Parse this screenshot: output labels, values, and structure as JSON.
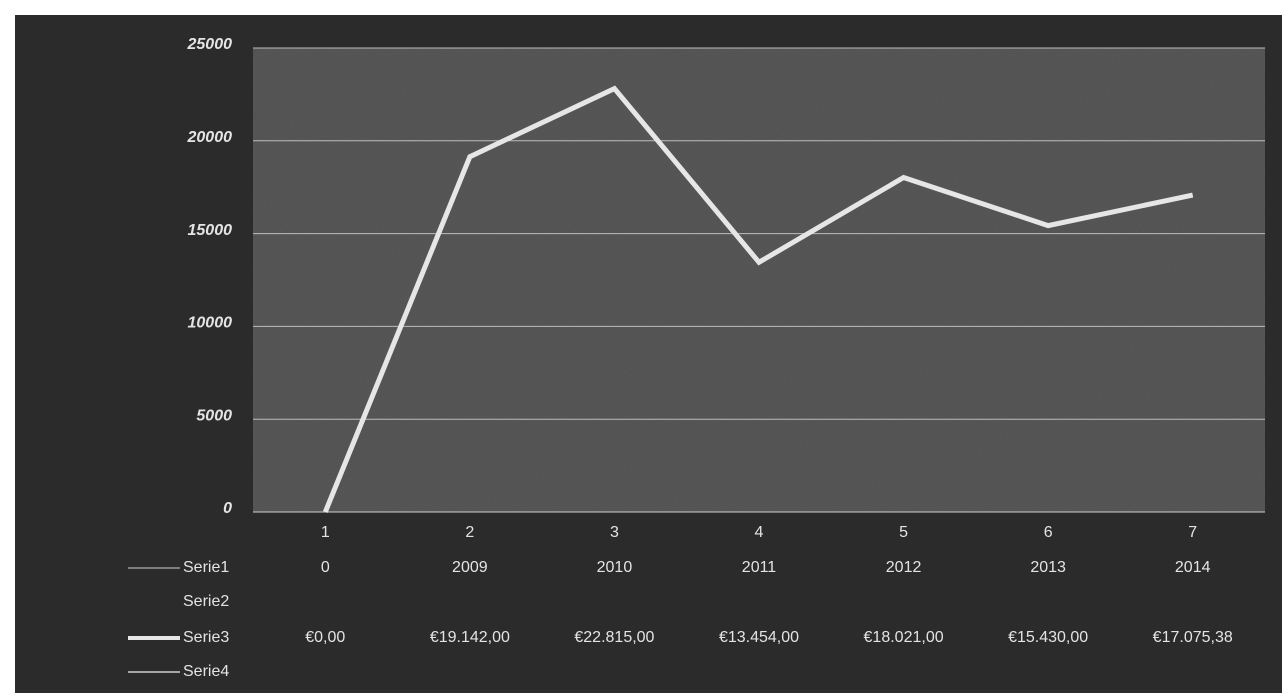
{
  "chart_data": {
    "type": "line",
    "categories": [
      "1",
      "2",
      "3",
      "4",
      "5",
      "6",
      "7"
    ],
    "series": [
      {
        "name": "Serie1",
        "color": "#9a9a9a",
        "values": [
          0,
          2009,
          2010,
          2011,
          2012,
          2013,
          2014
        ]
      },
      {
        "name": "Serie2",
        "values": [
          null,
          null,
          null,
          null,
          null,
          null,
          null
        ]
      },
      {
        "name": "Serie3",
        "color": "#e6e6e6",
        "plotted": true,
        "values": [
          0,
          19142,
          22815,
          13454,
          18021,
          15430,
          17075.38
        ],
        "value_labels": [
          "€0,00",
          "€19.142,00",
          "€22.815,00",
          "€13.454,00",
          "€18.021,00",
          "€15.430,00",
          "€17.075,38"
        ]
      },
      {
        "name": "Serie4",
        "color": "#cfcfcf",
        "values": [
          null,
          null,
          null,
          null,
          null,
          null,
          null
        ]
      }
    ],
    "ylim": [
      0,
      25000
    ],
    "yticks": [
      0,
      5000,
      10000,
      15000,
      20000,
      25000
    ],
    "grid": true
  }
}
